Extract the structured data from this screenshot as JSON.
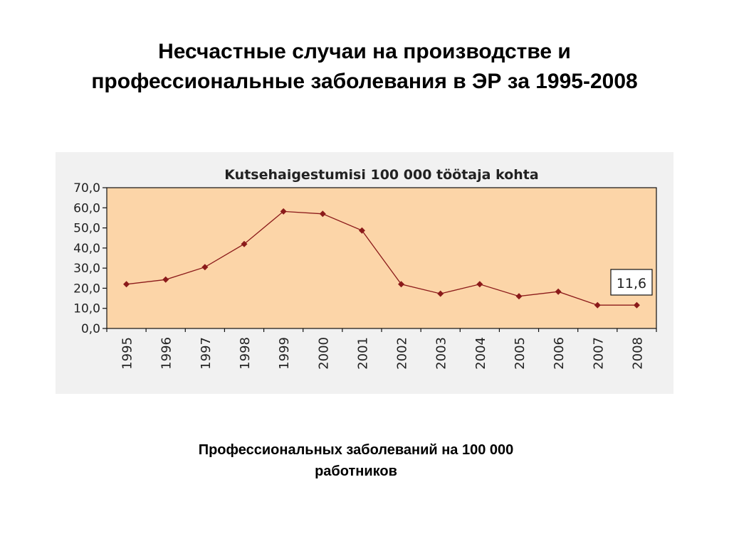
{
  "slide": {
    "title_line1": "Несчастные случаи на производстве и",
    "title_line2": "профессиональные заболевания в ЭР за 1995-2008",
    "caption_line1": "Профессиональных заболеваний на 100 000",
    "caption_line2": "работников"
  },
  "chart_data": {
    "type": "line",
    "title": "Kutsehaigestumisi 100 000 töötaja kohta",
    "xlabel": "",
    "ylabel": "",
    "categories": [
      "1995",
      "1996",
      "1997",
      "1998",
      "1999",
      "2000",
      "2001",
      "2002",
      "2003",
      "2004",
      "2005",
      "2006",
      "2007",
      "2008"
    ],
    "series": [
      {
        "values": [
          22.0,
          24.3,
          30.5,
          42.0,
          58.2,
          57.0,
          48.7,
          22.0,
          17.3,
          22.0,
          16.0,
          18.3,
          11.6,
          11.6
        ]
      }
    ],
    "ylim": [
      0,
      70
    ],
    "yticks": [
      "0,0",
      "10,0",
      "20,0",
      "30,0",
      "40,0",
      "50,0",
      "60,0",
      "70,0"
    ],
    "annotation": "11,6",
    "grid": false,
    "legend": "none",
    "colors": {
      "plot_background": "#fcd5a8",
      "panel_background": "#f1f1f1",
      "line": "#8b1a1a",
      "marker": "#8b1a1a"
    }
  }
}
